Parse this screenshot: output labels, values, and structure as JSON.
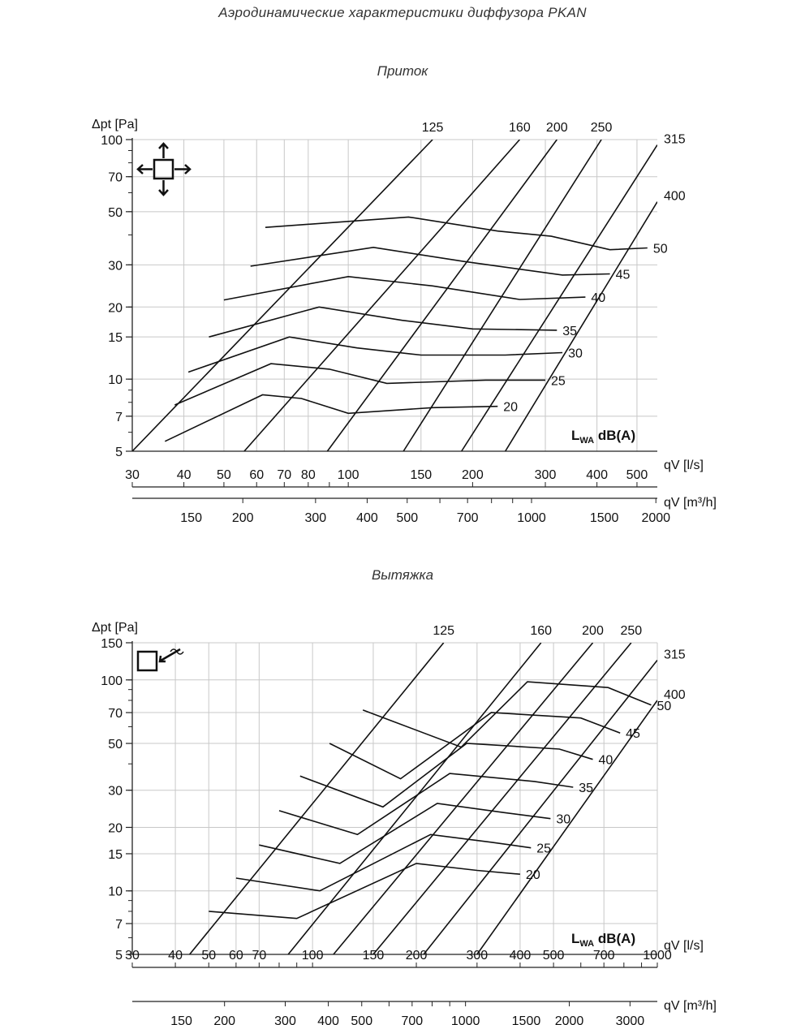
{
  "title": "Аэродинамические характеристики диффузора PKAN",
  "chart_data": [
    {
      "type": "line",
      "title": "Приток",
      "ylabel": "Δpt [Pa]",
      "xlabel": "qV [l/s]",
      "xlabel2": "qV [m³/h]",
      "yscale": "log",
      "xscale": "log",
      "ylim": [
        5,
        100
      ],
      "xlim": [
        30,
        560
      ],
      "x2lim": [
        108,
        2016
      ],
      "yticks": [
        5,
        7,
        10,
        15,
        20,
        30,
        50,
        70,
        100
      ],
      "xticks": [
        30,
        40,
        50,
        60,
        70,
        80,
        100,
        150,
        200,
        300,
        400,
        500
      ],
      "x2ticks": [
        150,
        200,
        300,
        400,
        500,
        700,
        1000,
        1500,
        2000
      ],
      "legend": "LWA dB(A)",
      "icon": "supply-arrows-icon",
      "size_series": [
        {
          "name": "125",
          "points": [
            [
              30,
              5
            ],
            [
              160,
              100
            ]
          ]
        },
        {
          "name": "160",
          "points": [
            [
              56,
              5
            ],
            [
              260,
              100
            ]
          ]
        },
        {
          "name": "200",
          "points": [
            [
              89,
              5
            ],
            [
              320,
              100
            ]
          ]
        },
        {
          "name": "250",
          "points": [
            [
              136,
              5
            ],
            [
              410,
              100
            ]
          ]
        },
        {
          "name": "315",
          "points": [
            [
              188,
              5
            ],
            [
              560,
              95
            ]
          ]
        },
        {
          "name": "400",
          "points": [
            [
              240,
              5
            ],
            [
              560,
              55
            ]
          ]
        }
      ],
      "noise_series": [
        {
          "name": "20",
          "points": [
            [
              36,
              5.5
            ],
            [
              62,
              8.6
            ],
            [
              77,
              8.3
            ],
            [
              100,
              7.2
            ],
            [
              160,
              7.6
            ],
            [
              230,
              7.7
            ]
          ]
        },
        {
          "name": "25",
          "points": [
            [
              38,
              7.8
            ],
            [
              65,
              11.6
            ],
            [
              90,
              11
            ],
            [
              124,
              9.6
            ],
            [
              215,
              9.9
            ],
            [
              300,
              9.9
            ]
          ]
        },
        {
          "name": "30",
          "points": [
            [
              41,
              10.7
            ],
            [
              72,
              15
            ],
            [
              105,
              13.5
            ],
            [
              150,
              12.6
            ],
            [
              240,
              12.6
            ],
            [
              330,
              12.9
            ]
          ]
        },
        {
          "name": "35",
          "points": [
            [
              46,
              15
            ],
            [
              85,
              20
            ],
            [
              135,
              17.6
            ],
            [
              200,
              16.2
            ],
            [
              320,
              16
            ]
          ]
        },
        {
          "name": "40",
          "points": [
            [
              50,
              21.4
            ],
            [
              100,
              26.8
            ],
            [
              160,
              24.5
            ],
            [
              260,
              21.5
            ],
            [
              375,
              22
            ]
          ]
        },
        {
          "name": "45",
          "points": [
            [
              58,
              29.6
            ],
            [
              115,
              35.5
            ],
            [
              190,
              31
            ],
            [
              330,
              27.2
            ],
            [
              430,
              27.5
            ]
          ]
        },
        {
          "name": "50",
          "points": [
            [
              63,
              43
            ],
            [
              140,
              47.5
            ],
            [
              230,
              41.5
            ],
            [
              310,
              39.5
            ],
            [
              430,
              34.7
            ],
            [
              530,
              35.3
            ]
          ]
        }
      ]
    },
    {
      "type": "line",
      "title": "Вытяжка",
      "ylabel": "Δpt [Pa]",
      "xlabel": "qV [l/s]",
      "xlabel2": "qV [m³/h]",
      "yscale": "log",
      "xscale": "log",
      "ylim": [
        5,
        150
      ],
      "xlim": [
        30,
        1000
      ],
      "x2lim": [
        108,
        3600
      ],
      "yticks": [
        5,
        7,
        10,
        15,
        20,
        30,
        50,
        70,
        100,
        150
      ],
      "xticks": [
        30,
        40,
        50,
        60,
        70,
        100,
        150,
        200,
        300,
        400,
        500,
        700,
        1000
      ],
      "x2ticks": [
        150,
        200,
        300,
        400,
        500,
        700,
        1000,
        1500,
        2000,
        3000
      ],
      "legend": "LWA dB(A)",
      "icon": "exhaust-arrow-icon",
      "size_series": [
        {
          "name": "125",
          "points": [
            [
              44,
              5
            ],
            [
              240,
              150
            ]
          ]
        },
        {
          "name": "160",
          "points": [
            [
              85,
              5
            ],
            [
              460,
              150
            ]
          ]
        },
        {
          "name": "200",
          "points": [
            [
              115,
              5
            ],
            [
              650,
              150
            ]
          ]
        },
        {
          "name": "250",
          "points": [
            [
              150,
              5
            ],
            [
              840,
              150
            ]
          ]
        },
        {
          "name": "315",
          "points": [
            [
              210,
              5
            ],
            [
              1000,
              124
            ]
          ]
        },
        {
          "name": "400",
          "points": [
            [
              300,
              5
            ],
            [
              1000,
              80
            ]
          ]
        }
      ],
      "noise_series": [
        {
          "name": "20",
          "points": [
            [
              50,
              8
            ],
            [
              90,
              7.4
            ],
            [
              200,
              13.5
            ],
            [
              300,
              12.5
            ],
            [
              400,
              12
            ]
          ]
        },
        {
          "name": "25",
          "points": [
            [
              60,
              11.5
            ],
            [
              105,
              10
            ],
            [
              220,
              18.5
            ],
            [
              330,
              17
            ],
            [
              430,
              16
            ]
          ]
        },
        {
          "name": "30",
          "points": [
            [
              70,
              16.5
            ],
            [
              120,
              13.5
            ],
            [
              230,
              26
            ],
            [
              360,
              23.5
            ],
            [
              490,
              22
            ]
          ]
        },
        {
          "name": "35",
          "points": [
            [
              80,
              24
            ],
            [
              135,
              18.5
            ],
            [
              250,
              36
            ],
            [
              440,
              33
            ],
            [
              570,
              31
            ]
          ]
        },
        {
          "name": "40",
          "points": [
            [
              92,
              35
            ],
            [
              160,
              25
            ],
            [
              280,
              50
            ],
            [
              520,
              47
            ],
            [
              650,
              42
            ]
          ]
        },
        {
          "name": "45",
          "points": [
            [
              112,
              50
            ],
            [
              180,
              34
            ],
            [
              330,
              70
            ],
            [
              600,
              66
            ],
            [
              780,
              56
            ]
          ]
        },
        {
          "name": "50",
          "points": [
            [
              140,
              72
            ],
            [
              270,
              48
            ],
            [
              420,
              98
            ],
            [
              720,
              92
            ],
            [
              960,
              76
            ]
          ]
        }
      ]
    }
  ]
}
